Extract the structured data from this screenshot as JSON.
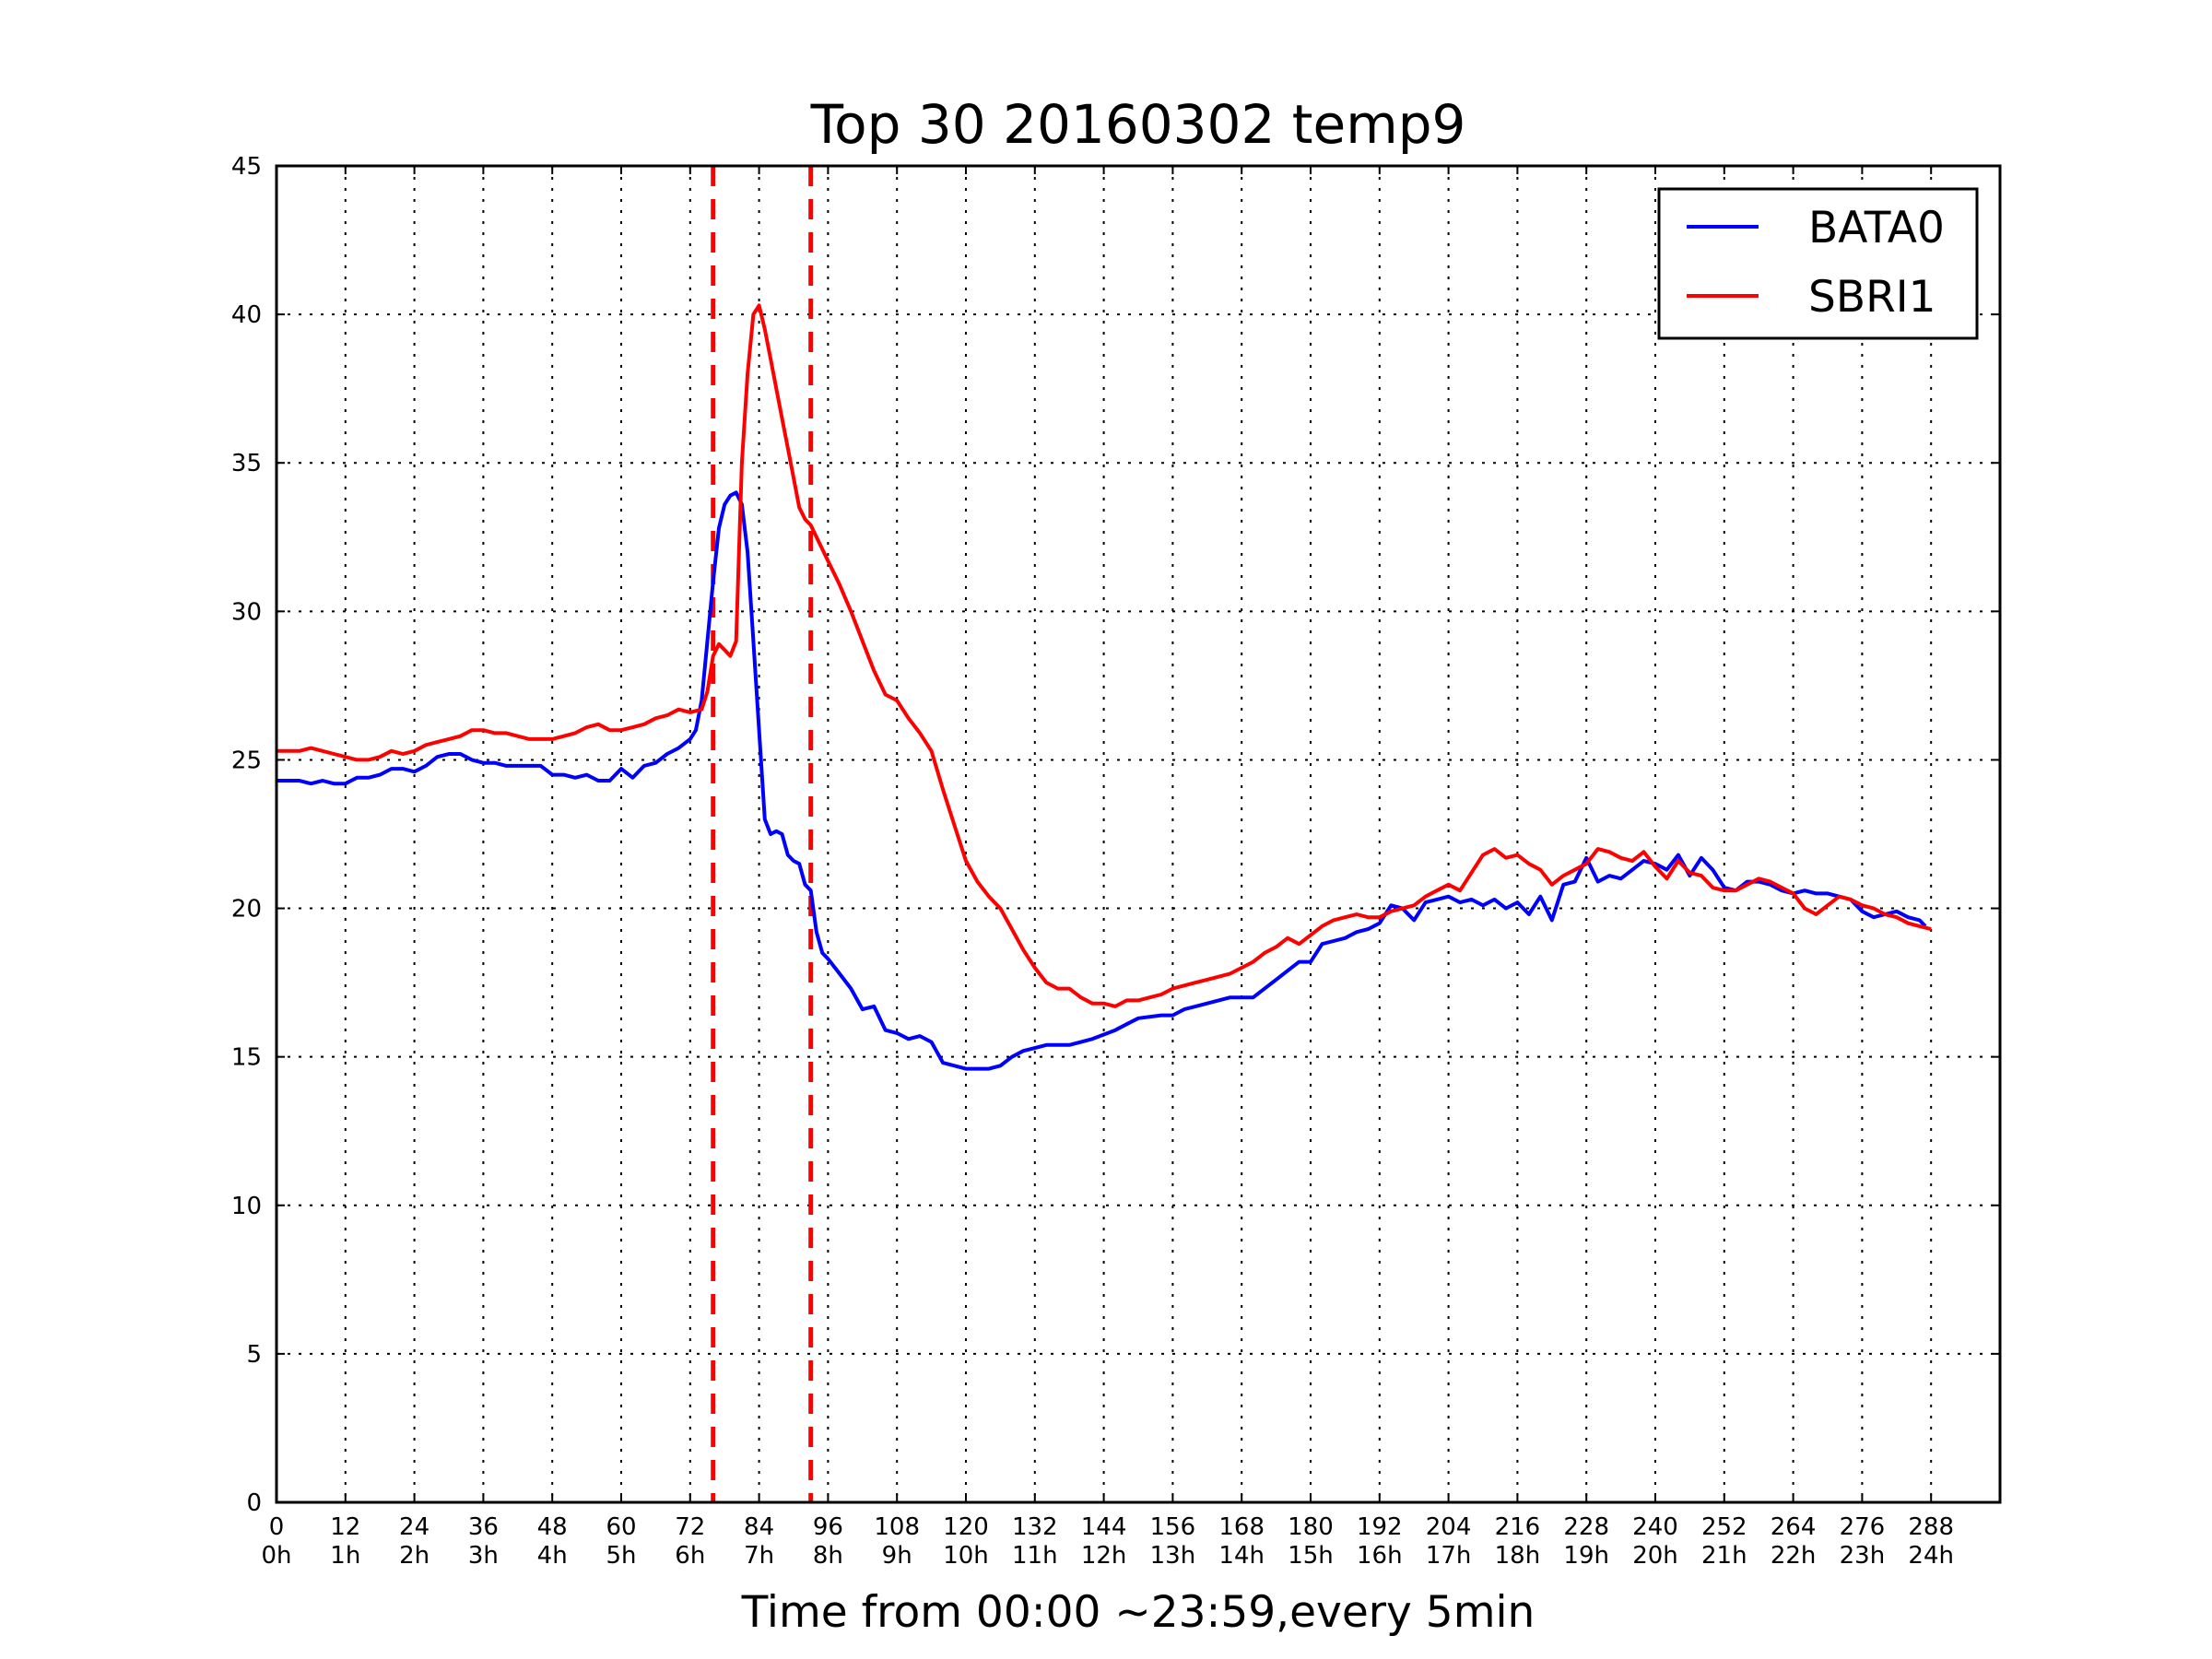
{
  "chart_data": {
    "type": "line",
    "title": "Top 30 20160302 temp9",
    "xlabel": "Time from 00:00 ~23:59,every 5min",
    "ylabel": "",
    "xlim": [
      0,
      300
    ],
    "ylim": [
      0,
      45
    ],
    "grid": true,
    "legend_position": "top-right",
    "x_ticks": [
      0,
      12,
      24,
      36,
      48,
      60,
      72,
      84,
      96,
      108,
      120,
      132,
      144,
      156,
      168,
      180,
      192,
      204,
      216,
      228,
      240,
      252,
      264,
      276,
      288
    ],
    "x_tick_labels": [
      "0\n0h",
      "12\n1h",
      "24\n2h",
      "36\n3h",
      "48\n4h",
      "60\n5h",
      "72\n6h",
      "84\n7h",
      "96\n8h",
      "108\n9h",
      "120\n10h",
      "132\n11h",
      "144\n12h",
      "156\n13h",
      "168\n14h",
      "180\n15h",
      "192\n16h",
      "204\n17h",
      "216\n18h",
      "228\n19h",
      "240\n20h",
      "252\n21h",
      "264\n22h",
      "276\n23h",
      "288\n24h"
    ],
    "y_ticks": [
      0,
      5,
      10,
      15,
      20,
      25,
      30,
      35,
      40,
      45
    ],
    "y_tick_labels": [
      "0",
      "5",
      "10",
      "15",
      "20",
      "25",
      "30",
      "35",
      "40",
      "45"
    ],
    "vertical_lines": [
      {
        "x": 76,
        "color": "#ff0000",
        "style": "dashed"
      },
      {
        "x": 93,
        "color": "#ff0000",
        "style": "dashed"
      }
    ],
    "series": [
      {
        "name": "BATA0",
        "color": "#0000ff",
        "points": [
          [
            0,
            24.3
          ],
          [
            4,
            24.3
          ],
          [
            6,
            24.2
          ],
          [
            8,
            24.3
          ],
          [
            10,
            24.2
          ],
          [
            12,
            24.2
          ],
          [
            14,
            24.4
          ],
          [
            16,
            24.4
          ],
          [
            18,
            24.5
          ],
          [
            20,
            24.7
          ],
          [
            22,
            24.7
          ],
          [
            24,
            24.6
          ],
          [
            26,
            24.8
          ],
          [
            28,
            25.1
          ],
          [
            30,
            25.2
          ],
          [
            32,
            25.2
          ],
          [
            34,
            25.0
          ],
          [
            36,
            24.9
          ],
          [
            38,
            24.9
          ],
          [
            40,
            24.8
          ],
          [
            42,
            24.8
          ],
          [
            46,
            24.8
          ],
          [
            48,
            24.5
          ],
          [
            50,
            24.5
          ],
          [
            52,
            24.4
          ],
          [
            54,
            24.5
          ],
          [
            56,
            24.3
          ],
          [
            58,
            24.3
          ],
          [
            60,
            24.7
          ],
          [
            62,
            24.4
          ],
          [
            64,
            24.8
          ],
          [
            66,
            24.9
          ],
          [
            68,
            25.2
          ],
          [
            70,
            25.4
          ],
          [
            72,
            25.7
          ],
          [
            73,
            26.0
          ],
          [
            74,
            27.0
          ],
          [
            75,
            29.0
          ],
          [
            76,
            31.0
          ],
          [
            77,
            32.8
          ],
          [
            78,
            33.6
          ],
          [
            79,
            33.9
          ],
          [
            80,
            34.0
          ],
          [
            81,
            33.6
          ],
          [
            82,
            32.0
          ],
          [
            83,
            29.0
          ],
          [
            84,
            26.0
          ],
          [
            85,
            23.0
          ],
          [
            86,
            22.5
          ],
          [
            87,
            22.6
          ],
          [
            88,
            22.5
          ],
          [
            89,
            21.8
          ],
          [
            90,
            21.6
          ],
          [
            91,
            21.5
          ],
          [
            92,
            20.8
          ],
          [
            93,
            20.6
          ],
          [
            94,
            19.2
          ],
          [
            95,
            18.5
          ],
          [
            96,
            18.3
          ],
          [
            98,
            17.8
          ],
          [
            100,
            17.3
          ],
          [
            102,
            16.6
          ],
          [
            104,
            16.7
          ],
          [
            106,
            15.9
          ],
          [
            108,
            15.8
          ],
          [
            110,
            15.6
          ],
          [
            112,
            15.7
          ],
          [
            114,
            15.5
          ],
          [
            116,
            14.8
          ],
          [
            118,
            14.7
          ],
          [
            120,
            14.6
          ],
          [
            124,
            14.6
          ],
          [
            126,
            14.7
          ],
          [
            128,
            15.0
          ],
          [
            130,
            15.2
          ],
          [
            132,
            15.3
          ],
          [
            134,
            15.4
          ],
          [
            138,
            15.4
          ],
          [
            140,
            15.5
          ],
          [
            142,
            15.6
          ],
          [
            146,
            15.9
          ],
          [
            148,
            16.1
          ],
          [
            150,
            16.3
          ],
          [
            154,
            16.4
          ],
          [
            156,
            16.4
          ],
          [
            158,
            16.6
          ],
          [
            160,
            16.7
          ],
          [
            162,
            16.8
          ],
          [
            164,
            16.9
          ],
          [
            166,
            17.0
          ],
          [
            170,
            17.0
          ],
          [
            172,
            17.3
          ],
          [
            174,
            17.6
          ],
          [
            176,
            17.9
          ],
          [
            178,
            18.2
          ],
          [
            180,
            18.2
          ],
          [
            182,
            18.8
          ],
          [
            184,
            18.9
          ],
          [
            186,
            19.0
          ],
          [
            188,
            19.2
          ],
          [
            190,
            19.3
          ],
          [
            192,
            19.5
          ],
          [
            194,
            20.1
          ],
          [
            196,
            20.0
          ],
          [
            198,
            19.6
          ],
          [
            200,
            20.2
          ],
          [
            202,
            20.3
          ],
          [
            204,
            20.4
          ],
          [
            206,
            20.2
          ],
          [
            208,
            20.3
          ],
          [
            210,
            20.1
          ],
          [
            212,
            20.3
          ],
          [
            214,
            20.0
          ],
          [
            216,
            20.2
          ],
          [
            218,
            19.8
          ],
          [
            220,
            20.4
          ],
          [
            222,
            19.6
          ],
          [
            224,
            20.8
          ],
          [
            226,
            20.9
          ],
          [
            228,
            21.7
          ],
          [
            230,
            20.9
          ],
          [
            232,
            21.1
          ],
          [
            234,
            21.0
          ],
          [
            236,
            21.3
          ],
          [
            238,
            21.6
          ],
          [
            240,
            21.5
          ],
          [
            242,
            21.3
          ],
          [
            244,
            21.8
          ],
          [
            246,
            21.1
          ],
          [
            248,
            21.7
          ],
          [
            250,
            21.3
          ],
          [
            252,
            20.7
          ],
          [
            254,
            20.6
          ],
          [
            256,
            20.9
          ],
          [
            258,
            20.9
          ],
          [
            260,
            20.8
          ],
          [
            262,
            20.6
          ],
          [
            264,
            20.5
          ],
          [
            266,
            20.6
          ],
          [
            268,
            20.5
          ],
          [
            270,
            20.5
          ],
          [
            272,
            20.4
          ],
          [
            274,
            20.3
          ],
          [
            276,
            19.9
          ],
          [
            278,
            19.7
          ],
          [
            280,
            19.8
          ],
          [
            282,
            19.9
          ],
          [
            284,
            19.7
          ],
          [
            286,
            19.6
          ],
          [
            287,
            19.4
          ]
        ]
      },
      {
        "name": "SBRI1",
        "color": "#ff0000",
        "points": [
          [
            0,
            25.3
          ],
          [
            4,
            25.3
          ],
          [
            6,
            25.4
          ],
          [
            8,
            25.3
          ],
          [
            10,
            25.2
          ],
          [
            12,
            25.1
          ],
          [
            14,
            25.0
          ],
          [
            16,
            25.0
          ],
          [
            18,
            25.1
          ],
          [
            20,
            25.3
          ],
          [
            22,
            25.2
          ],
          [
            24,
            25.3
          ],
          [
            26,
            25.5
          ],
          [
            28,
            25.6
          ],
          [
            30,
            25.7
          ],
          [
            32,
            25.8
          ],
          [
            34,
            26.0
          ],
          [
            36,
            26.0
          ],
          [
            38,
            25.9
          ],
          [
            40,
            25.9
          ],
          [
            42,
            25.8
          ],
          [
            44,
            25.7
          ],
          [
            46,
            25.7
          ],
          [
            48,
            25.7
          ],
          [
            50,
            25.8
          ],
          [
            52,
            25.9
          ],
          [
            54,
            26.1
          ],
          [
            56,
            26.2
          ],
          [
            58,
            26.0
          ],
          [
            60,
            26.0
          ],
          [
            62,
            26.1
          ],
          [
            64,
            26.2
          ],
          [
            66,
            26.4
          ],
          [
            68,
            26.5
          ],
          [
            70,
            26.7
          ],
          [
            72,
            26.6
          ],
          [
            74,
            26.7
          ],
          [
            75,
            27.3
          ],
          [
            76,
            28.5
          ],
          [
            77,
            28.9
          ],
          [
            78,
            28.7
          ],
          [
            79,
            28.5
          ],
          [
            80,
            29.0
          ],
          [
            81,
            35.0
          ],
          [
            82,
            38.0
          ],
          [
            83,
            40.0
          ],
          [
            84,
            40.3
          ],
          [
            85,
            39.5
          ],
          [
            86,
            38.5
          ],
          [
            87,
            37.5
          ],
          [
            88,
            36.5
          ],
          [
            89,
            35.5
          ],
          [
            90,
            34.5
          ],
          [
            91,
            33.5
          ],
          [
            92,
            33.1
          ],
          [
            93,
            32.9
          ],
          [
            94,
            32.5
          ],
          [
            96,
            31.7
          ],
          [
            98,
            30.9
          ],
          [
            100,
            30.0
          ],
          [
            102,
            29.0
          ],
          [
            104,
            28.0
          ],
          [
            106,
            27.2
          ],
          [
            108,
            27.0
          ],
          [
            110,
            26.4
          ],
          [
            112,
            25.9
          ],
          [
            114,
            25.3
          ],
          [
            116,
            24.0
          ],
          [
            118,
            22.8
          ],
          [
            120,
            21.6
          ],
          [
            122,
            20.9
          ],
          [
            124,
            20.4
          ],
          [
            126,
            20.0
          ],
          [
            128,
            19.3
          ],
          [
            130,
            18.6
          ],
          [
            132,
            18.0
          ],
          [
            134,
            17.5
          ],
          [
            136,
            17.3
          ],
          [
            138,
            17.3
          ],
          [
            140,
            17.0
          ],
          [
            142,
            16.8
          ],
          [
            144,
            16.8
          ],
          [
            146,
            16.7
          ],
          [
            148,
            16.9
          ],
          [
            150,
            16.9
          ],
          [
            152,
            17.0
          ],
          [
            154,
            17.1
          ],
          [
            156,
            17.3
          ],
          [
            158,
            17.4
          ],
          [
            160,
            17.5
          ],
          [
            162,
            17.6
          ],
          [
            164,
            17.7
          ],
          [
            166,
            17.8
          ],
          [
            168,
            18.0
          ],
          [
            170,
            18.2
          ],
          [
            172,
            18.5
          ],
          [
            174,
            18.7
          ],
          [
            176,
            19.0
          ],
          [
            178,
            18.8
          ],
          [
            180,
            19.1
          ],
          [
            182,
            19.4
          ],
          [
            184,
            19.6
          ],
          [
            186,
            19.7
          ],
          [
            188,
            19.8
          ],
          [
            190,
            19.7
          ],
          [
            192,
            19.7
          ],
          [
            194,
            19.9
          ],
          [
            196,
            20.0
          ],
          [
            198,
            20.1
          ],
          [
            200,
            20.4
          ],
          [
            202,
            20.6
          ],
          [
            204,
            20.8
          ],
          [
            206,
            20.6
          ],
          [
            208,
            21.2
          ],
          [
            210,
            21.8
          ],
          [
            212,
            22.0
          ],
          [
            214,
            21.7
          ],
          [
            216,
            21.8
          ],
          [
            218,
            21.5
          ],
          [
            220,
            21.3
          ],
          [
            222,
            20.8
          ],
          [
            224,
            21.1
          ],
          [
            226,
            21.3
          ],
          [
            228,
            21.5
          ],
          [
            230,
            22.0
          ],
          [
            232,
            21.9
          ],
          [
            234,
            21.7
          ],
          [
            236,
            21.6
          ],
          [
            238,
            21.9
          ],
          [
            240,
            21.4
          ],
          [
            242,
            21.0
          ],
          [
            244,
            21.6
          ],
          [
            246,
            21.2
          ],
          [
            248,
            21.1
          ],
          [
            250,
            20.7
          ],
          [
            252,
            20.6
          ],
          [
            254,
            20.6
          ],
          [
            256,
            20.8
          ],
          [
            258,
            21.0
          ],
          [
            260,
            20.9
          ],
          [
            262,
            20.7
          ],
          [
            264,
            20.5
          ],
          [
            266,
            20.0
          ],
          [
            268,
            19.8
          ],
          [
            270,
            20.1
          ],
          [
            272,
            20.4
          ],
          [
            274,
            20.3
          ],
          [
            276,
            20.1
          ],
          [
            278,
            20.0
          ],
          [
            280,
            19.8
          ],
          [
            282,
            19.7
          ],
          [
            284,
            19.5
          ],
          [
            286,
            19.4
          ],
          [
            288,
            19.3
          ]
        ]
      }
    ]
  }
}
